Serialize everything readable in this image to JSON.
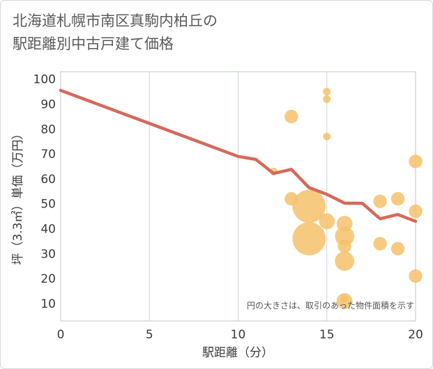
{
  "title_line1": "北海道札幌市南区真駒内柏丘の",
  "title_line2": "駅距離別中古戸建て価格",
  "chart_data": {
    "type": "scatter",
    "title": "北海道札幌市南区真駒内柏丘の駅距離別中古戸建て価格",
    "xlabel": "駅距離（分）",
    "ylabel": "坪（3.3㎡）単価（万円）",
    "xlim": [
      0,
      20
    ],
    "ylim": [
      3,
      103
    ],
    "x_ticks": [
      0,
      5,
      10,
      15,
      20
    ],
    "y_ticks": [
      10,
      20,
      30,
      40,
      50,
      60,
      70,
      80,
      90,
      100
    ],
    "grid": true,
    "note": "円の大きさは、取引のあった物件面積を示す",
    "colors": {
      "bubble": "#f5c26b",
      "line": "#d46a5a",
      "grid": "#c8d3e0"
    },
    "bubbles": [
      {
        "x": 12,
        "y": 63,
        "size": 1
      },
      {
        "x": 13,
        "y": 85,
        "size": 2
      },
      {
        "x": 13,
        "y": 52,
        "size": 2
      },
      {
        "x": 14,
        "y": 49,
        "size": 20
      },
      {
        "x": 14,
        "y": 36,
        "size": 20
      },
      {
        "x": 15,
        "y": 95,
        "size": 1
      },
      {
        "x": 15,
        "y": 92,
        "size": 1
      },
      {
        "x": 15,
        "y": 77,
        "size": 1
      },
      {
        "x": 15,
        "y": 43,
        "size": 3
      },
      {
        "x": 16,
        "y": 42,
        "size": 3
      },
      {
        "x": 16,
        "y": 37,
        "size": 5
      },
      {
        "x": 16,
        "y": 33,
        "size": 2
      },
      {
        "x": 16,
        "y": 27,
        "size": 5
      },
      {
        "x": 16,
        "y": 12,
        "size": 1
      },
      {
        "x": 16,
        "y": 11,
        "size": 3
      },
      {
        "x": 18,
        "y": 51,
        "size": 2
      },
      {
        "x": 18,
        "y": 34,
        "size": 2
      },
      {
        "x": 19,
        "y": 52,
        "size": 2
      },
      {
        "x": 19,
        "y": 32,
        "size": 2
      },
      {
        "x": 20,
        "y": 67,
        "size": 2
      },
      {
        "x": 20,
        "y": 47,
        "size": 2
      },
      {
        "x": 20,
        "y": 21,
        "size": 2
      }
    ],
    "trend": {
      "x": [
        0,
        10,
        11,
        12,
        13,
        14,
        15,
        16,
        17,
        18,
        19,
        20
      ],
      "y": [
        95.5,
        69,
        67.8,
        62.2,
        63.8,
        56.5,
        53.8,
        50.3,
        50.2,
        44,
        45.7,
        43
      ]
    }
  }
}
